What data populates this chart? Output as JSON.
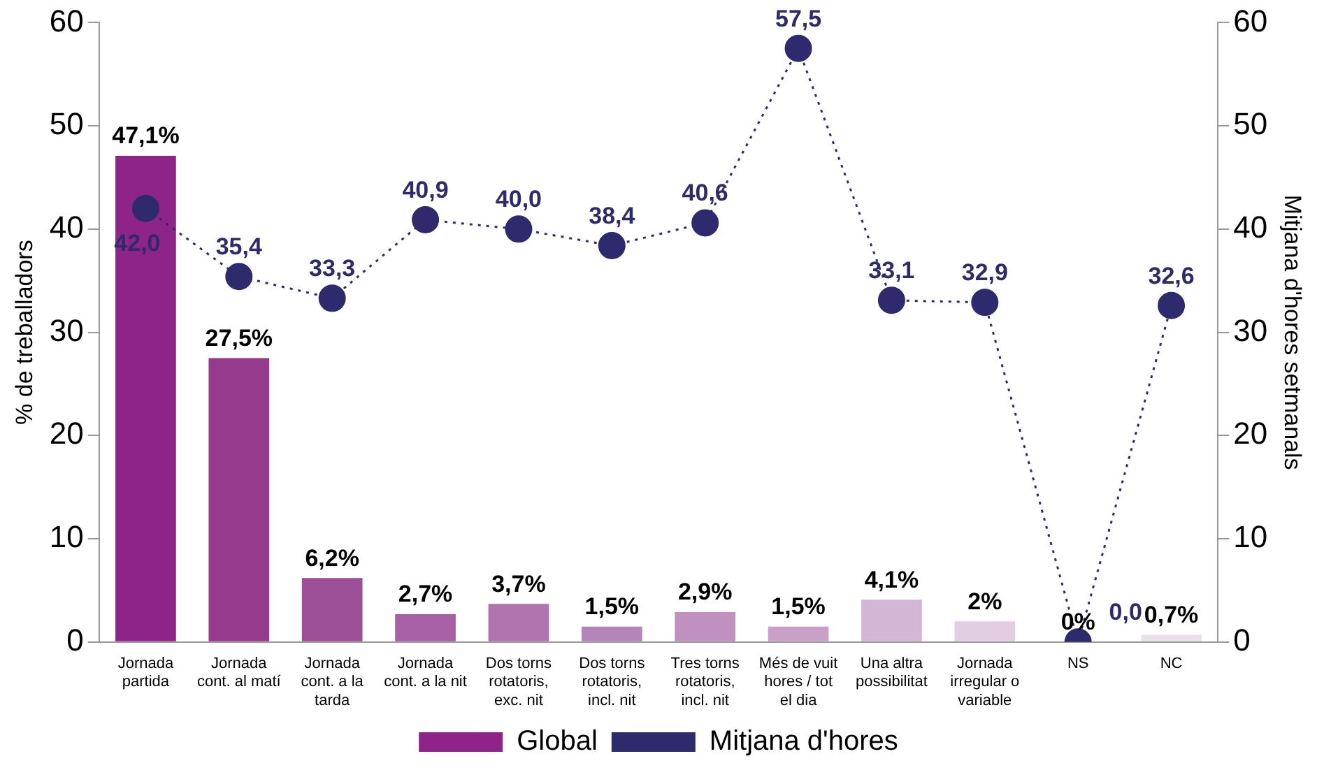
{
  "chart_data": {
    "type": "bar",
    "ylabel": "% de treballadors",
    "y2label": "Mitjana d'hores setmanals",
    "categories": [
      "Jornada partida",
      "Jornada cont. al matí",
      "Jornada cont. a la tarda",
      "Jornada cont. a la nit",
      "Dos torns rotatoris, exc. nit",
      "Dos torns rotatoris, incl. nit",
      "Tres torns rotatoris, incl. nit",
      "Més de vuit hores / tot el dia",
      "Una altra possibilitat",
      "Jornada irregular o variable",
      "NS",
      "NC"
    ],
    "series": [
      {
        "name": "Global",
        "colors": [
          "#8e2389",
          "#963a8e",
          "#9c4f97",
          "#a760a5",
          "#b073ad",
          "#b584ba",
          "#c091c0",
          "#c8a0c8",
          "#d3b6d6",
          "#e2cde3",
          "#e8dbe8",
          "#ebe1ec"
        ],
        "values": [
          47.1,
          27.5,
          6.2,
          2.7,
          3.7,
          1.5,
          2.9,
          1.5,
          4.1,
          2,
          0,
          0.7
        ],
        "value_labels": [
          "47,1%",
          "27,5%",
          "6,2%",
          "2,7%",
          "3,7%",
          "1,5%",
          "2,9%",
          "1,5%",
          "4,1%",
          "2%",
          "0%",
          "0,7%"
        ]
      },
      {
        "name": "Mitjana d'hores",
        "type": "line",
        "axis": "y2",
        "color": "#2e2a6e",
        "values": [
          42.0,
          35.4,
          33.3,
          40.9,
          40.0,
          38.4,
          40.6,
          57.5,
          33.1,
          32.9,
          0.0,
          32.6
        ],
        "value_labels": [
          "42,0",
          "35,4",
          "33,3",
          "40,9",
          "40,0",
          "38,4",
          "40,6",
          "57,5",
          "33,1",
          "32,9",
          "0,0",
          "32,6"
        ]
      }
    ],
    "ylim": [
      0,
      60
    ],
    "yticks": [
      0,
      10,
      20,
      30,
      40,
      50,
      60
    ],
    "y2lim": [
      0,
      60
    ],
    "y2ticks": [
      0,
      10,
      20,
      30,
      40,
      50,
      60
    ],
    "grid": false,
    "legend": "bottom",
    "marker": "circle",
    "line_style": "dotted"
  }
}
